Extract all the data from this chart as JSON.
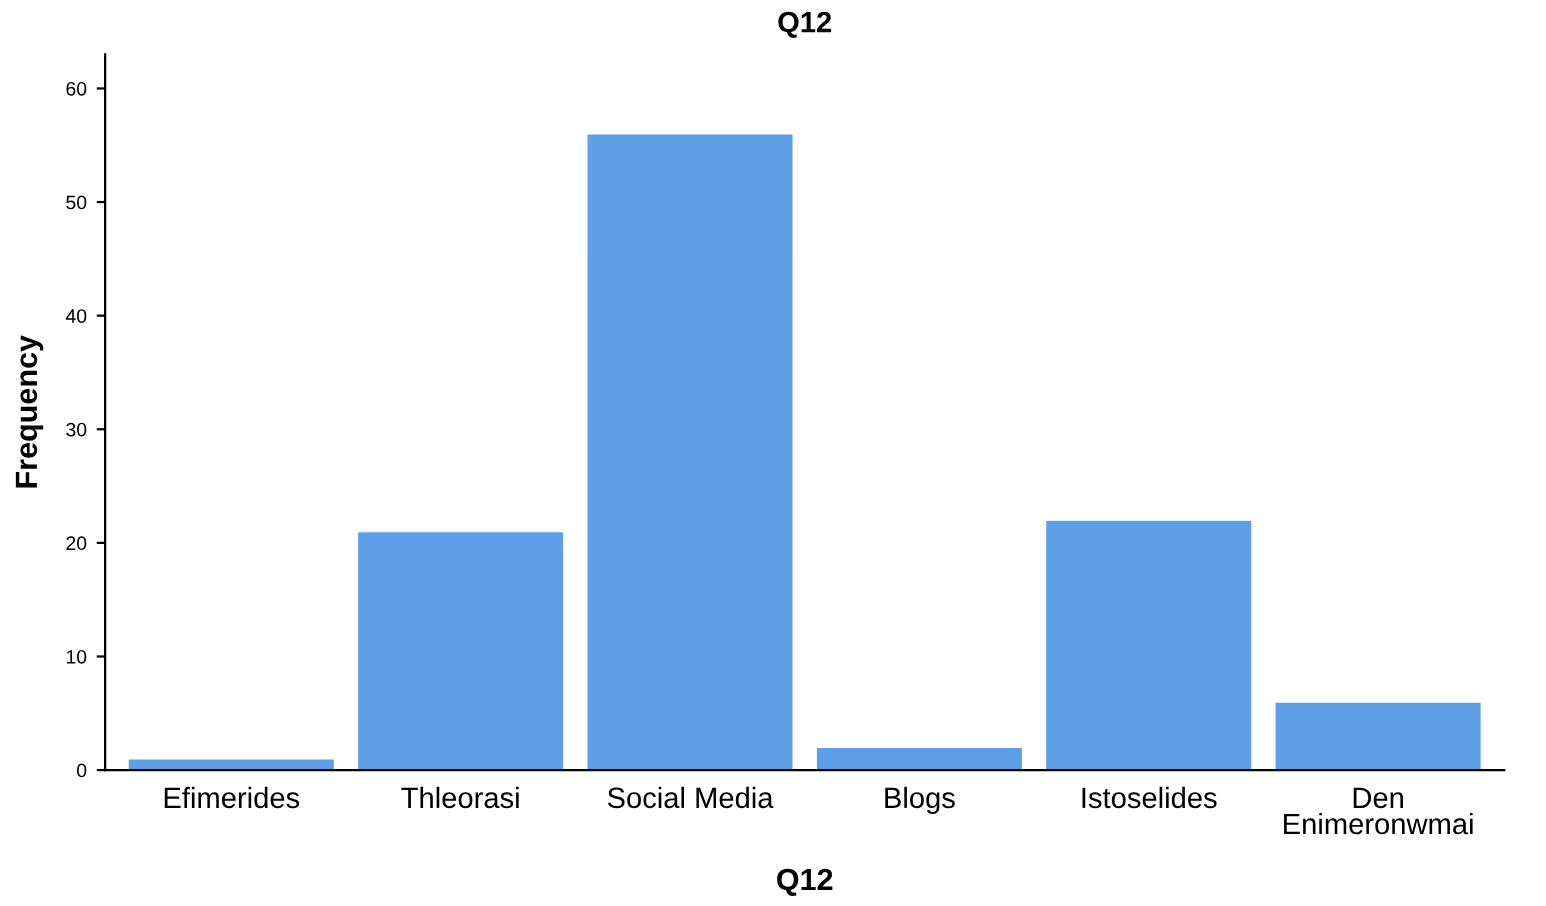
{
  "chart_data": {
    "type": "bar",
    "title": "Q12",
    "xlabel": "Q12",
    "ylabel": "Frequency",
    "categories": [
      "Efimerides",
      "Thleorasi",
      "Social Media",
      "Blogs",
      "Istoselides",
      "Den\nEnimeronwmai"
    ],
    "values": [
      1,
      21,
      56,
      2,
      22,
      6
    ],
    "color": "#5f9fe8",
    "ylim": [
      0,
      63
    ],
    "yticks": [
      0,
      10,
      20,
      30,
      40,
      50,
      60
    ],
    "grid": false,
    "legend": false
  }
}
